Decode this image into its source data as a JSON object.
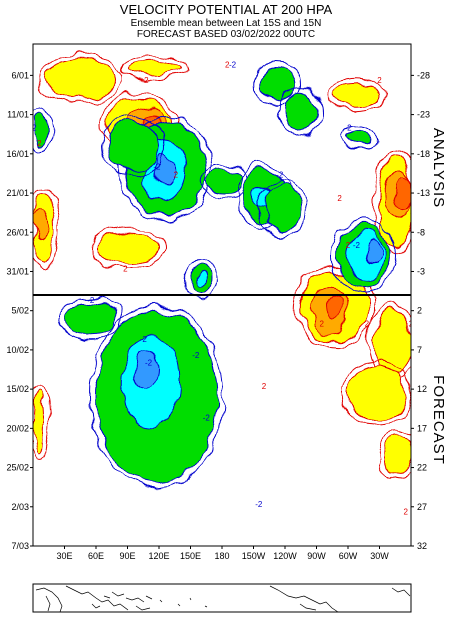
{
  "header": {
    "title": "VELOCITY POTENTIAL AT 200 HPA",
    "subtitle": "Ensemble mean between  Lat 15S and 15N",
    "forecast_line": "FORECAST  BASED 03/02/2022 00UTC"
  },
  "panel_labels": {
    "analysis": "ANALYSIS",
    "forecast": "FORECAST"
  },
  "colors": {
    "frame": "#000000",
    "positive_contour": "#e00000",
    "negative_contour": "#0000cc",
    "yellow": "#ffff00",
    "orange": "#ffaa00",
    "dark_orange": "#ff6600",
    "green": "#00dd00",
    "cyan": "#00ffff",
    "light_blue": "#3399ff"
  },
  "chart_data": {
    "type": "heatmap",
    "description_axes": "Hovmoller diagram: longitude vs time",
    "x_ticks": [
      "30E",
      "60E",
      "90E",
      "120E",
      "150E",
      "180",
      "150W",
      "120W",
      "90W",
      "60W",
      "30W"
    ],
    "x_tick_lon": [
      30,
      60,
      90,
      120,
      150,
      180,
      210,
      240,
      270,
      300,
      330
    ],
    "x_range": [
      0,
      360
    ],
    "y_left_ticks": [
      "6/01",
      "11/01",
      "16/01",
      "21/01",
      "26/01",
      "31/01",
      "5/02",
      "10/02",
      "15/02",
      "20/02",
      "25/02",
      "2/03",
      "7/03"
    ],
    "y_right_ticks": [
      "-28",
      "-23",
      "-18",
      "-13",
      "-8",
      "-3",
      "2",
      "7",
      "12",
      "17",
      "22",
      "27",
      "32"
    ],
    "y_right_values": [
      -28,
      -23,
      -18,
      -13,
      -8,
      -3,
      2,
      7,
      12,
      17,
      22,
      27,
      32
    ],
    "y_range_days": [
      -32,
      32
    ],
    "analysis_forecast_divider_day": 0,
    "contour_labels": [
      {
        "text": "2",
        "lon": 108,
        "day": -27
      },
      {
        "text": "2",
        "lon": 185,
        "day": -29
      },
      {
        "text": "2",
        "lon": 330,
        "day": -27
      },
      {
        "text": "2",
        "lon": 6,
        "day": -19
      },
      {
        "text": "2",
        "lon": 136,
        "day": -15
      },
      {
        "text": "2",
        "lon": 292,
        "day": -12
      },
      {
        "text": "2",
        "lon": 300,
        "day": -6
      },
      {
        "text": "2",
        "lon": 88,
        "day": -3
      },
      {
        "text": "-2",
        "lon": 190,
        "day": -29
      },
      {
        "text": "-2",
        "lon": 0,
        "day": -21
      },
      {
        "text": "-2",
        "lon": 300,
        "day": -21
      },
      {
        "text": "-2",
        "lon": 118,
        "day": -16
      },
      {
        "text": "-2",
        "lon": 235,
        "day": -15
      },
      {
        "text": "-2",
        "lon": 308,
        "day": -6
      },
      {
        "text": "-2",
        "lon": 55,
        "day": 1
      },
      {
        "text": "2",
        "lon": 275,
        "day": 4
      },
      {
        "text": "2",
        "lon": 318,
        "day": 4
      },
      {
        "text": "2",
        "lon": 360,
        "day": 4
      },
      {
        "text": "-2",
        "lon": 105,
        "day": 6
      },
      {
        "text": "-2",
        "lon": 155,
        "day": 8
      },
      {
        "text": "2",
        "lon": 220,
        "day": 12
      },
      {
        "text": "-2",
        "lon": 165,
        "day": 16
      },
      {
        "text": "-2",
        "lon": 215,
        "day": 27
      },
      {
        "text": "2",
        "lon": 355,
        "day": 28
      },
      {
        "text": "-2",
        "lon": 110,
        "day": 9
      }
    ],
    "negative_regions": [
      {
        "level": 1,
        "lon": [
          90,
          165
        ],
        "day": [
          -22,
          -10
        ]
      },
      {
        "level": 2,
        "lon": [
          105,
          145
        ],
        "day": [
          -20,
          -12
        ]
      },
      {
        "level": 3,
        "lon": [
          115,
          135
        ],
        "day": [
          -18,
          -14
        ]
      },
      {
        "level": 1,
        "lon": [
          70,
          120
        ],
        "day": [
          -22,
          -16
        ]
      },
      {
        "level": 1,
        "lon": [
          165,
          200
        ],
        "day": [
          -16,
          -13
        ]
      },
      {
        "level": 1,
        "lon": [
          200,
          240
        ],
        "day": [
          -16,
          -9
        ]
      },
      {
        "level": 2,
        "lon": [
          210,
          230
        ],
        "day": [
          -14,
          -11
        ]
      },
      {
        "level": 1,
        "lon": [
          220,
          255
        ],
        "day": [
          -14,
          -8
        ]
      },
      {
        "level": 1,
        "lon": [
          290,
          340
        ],
        "day": [
          -9,
          -1
        ]
      },
      {
        "level": 2,
        "lon": [
          300,
          335
        ],
        "day": [
          -8,
          -2
        ]
      },
      {
        "level": 3,
        "lon": [
          318,
          332
        ],
        "day": [
          -7,
          -4
        ]
      },
      {
        "level": 1,
        "lon": [
          150,
          170
        ],
        "day": [
          -4,
          0
        ]
      },
      {
        "level": 2,
        "lon": [
          155,
          165
        ],
        "day": [
          -3,
          -1
        ]
      },
      {
        "level": 1,
        "lon": [
          215,
          250
        ],
        "day": [
          -29,
          -25
        ]
      },
      {
        "level": 1,
        "lon": [
          240,
          270
        ],
        "day": [
          -26,
          -21
        ]
      },
      {
        "level": 1,
        "lon": [
          0,
          15
        ],
        "day": [
          -23,
          -19
        ]
      },
      {
        "level": 1,
        "lon": [
          300,
          320
        ],
        "day": [
          -21,
          -19
        ]
      },
      {
        "level": 1,
        "lon": [
          60,
          175
        ],
        "day": [
          2,
          24
        ]
      },
      {
        "level": 2,
        "lon": [
          85,
          140
        ],
        "day": [
          5,
          17
        ]
      },
      {
        "level": 3,
        "lon": [
          95,
          120
        ],
        "day": [
          7,
          12
        ]
      },
      {
        "level": 1,
        "lon": [
          30,
          80
        ],
        "day": [
          1,
          5
        ]
      }
    ],
    "positive_regions": [
      {
        "level": 1,
        "lon": [
          330,
          360
        ],
        "day": [
          -18,
          -6
        ]
      },
      {
        "level": 2,
        "lon": [
          335,
          360
        ],
        "day": [
          -16,
          -10
        ]
      },
      {
        "level": 3,
        "lon": [
          345,
          360
        ],
        "day": [
          -15,
          -11
        ]
      },
      {
        "level": 1,
        "lon": [
          0,
          20
        ],
        "day": [
          -13,
          -4
        ]
      },
      {
        "level": 2,
        "lon": [
          0,
          15
        ],
        "day": [
          -11,
          -7
        ]
      },
      {
        "level": 1,
        "lon": [
          70,
          130
        ],
        "day": [
          -25,
          -19
        ]
      },
      {
        "level": 2,
        "lon": [
          90,
          125
        ],
        "day": [
          -24,
          -20
        ]
      },
      {
        "level": 3,
        "lon": [
          105,
          120
        ],
        "day": [
          -23,
          -21
        ]
      },
      {
        "level": 1,
        "lon": [
          10,
          80
        ],
        "day": [
          -30,
          -25
        ]
      },
      {
        "level": 1,
        "lon": [
          90,
          140
        ],
        "day": [
          -30,
          -28
        ]
      },
      {
        "level": 1,
        "lon": [
          285,
          330
        ],
        "day": [
          -27,
          -24
        ]
      },
      {
        "level": 1,
        "lon": [
          60,
          120
        ],
        "day": [
          -8,
          -4
        ]
      },
      {
        "level": 1,
        "lon": [
          255,
          320
        ],
        "day": [
          -3,
          6
        ]
      },
      {
        "level": 2,
        "lon": [
          265,
          300
        ],
        "day": [
          -1,
          5
        ]
      },
      {
        "level": 3,
        "lon": [
          280,
          295
        ],
        "day": [
          0,
          3
        ]
      },
      {
        "level": 1,
        "lon": [
          325,
          360
        ],
        "day": [
          2,
          10
        ]
      },
      {
        "level": 1,
        "lon": [
          300,
          355
        ],
        "day": [
          9,
          16
        ]
      },
      {
        "level": 1,
        "lon": [
          0,
          10
        ],
        "day": [
          12,
          20
        ]
      },
      {
        "level": 1,
        "lon": [
          335,
          360
        ],
        "day": [
          18,
          23
        ]
      }
    ]
  }
}
